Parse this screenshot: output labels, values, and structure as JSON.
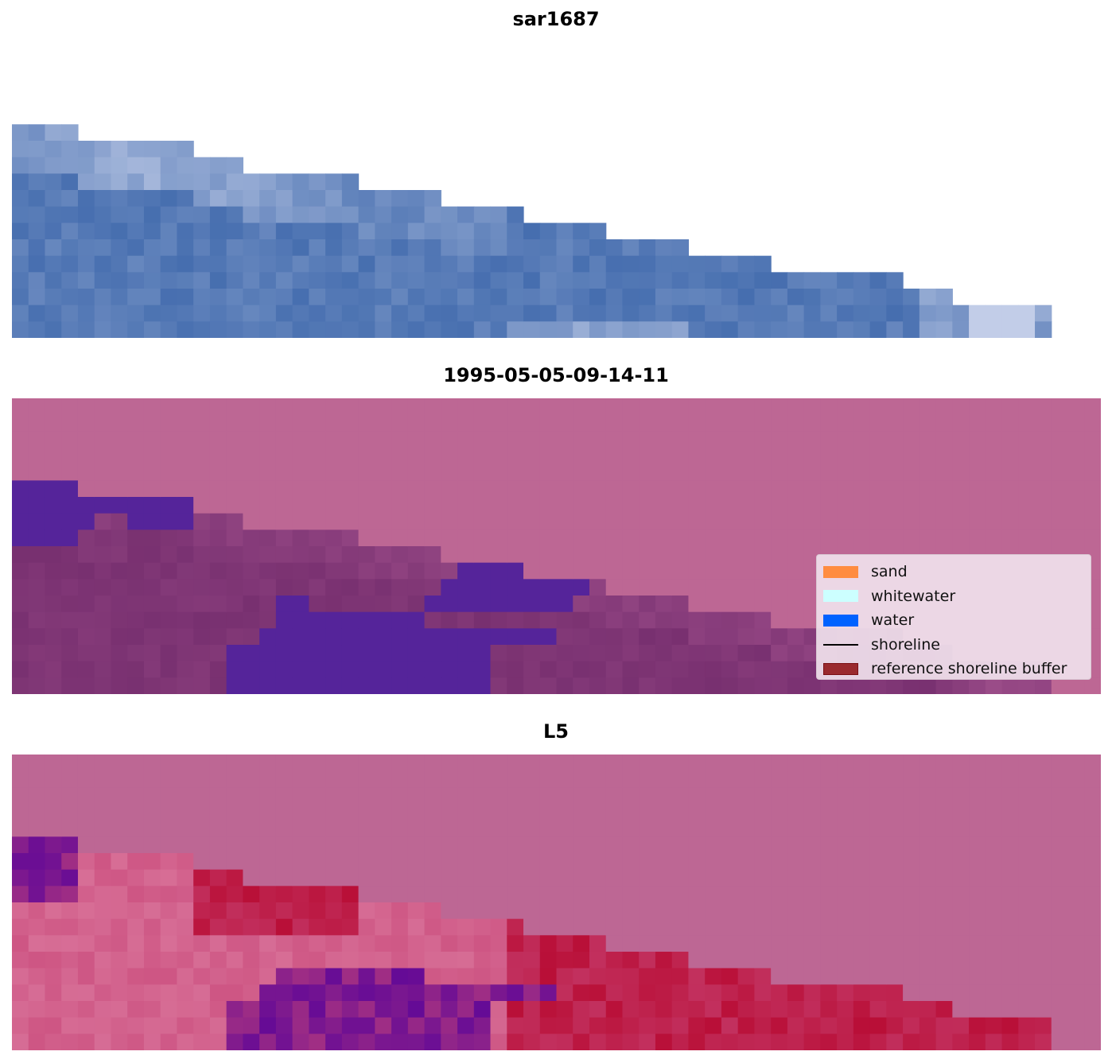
{
  "titles": [
    "sar1687",
    "1995-05-05-09-14-11",
    "L5"
  ],
  "legend": {
    "items": [
      {
        "label": "sand",
        "color": "#ff8c40",
        "kind": "patch"
      },
      {
        "label": "whitewater",
        "color": "#ccffff",
        "kind": "patch"
      },
      {
        "label": "water",
        "color": "#0062ff",
        "kind": "patch"
      },
      {
        "label": "shoreline",
        "color": "#000000",
        "kind": "line"
      },
      {
        "label": "reference shoreline buffer",
        "color": "#9a2a2e",
        "kind": "patch"
      }
    ]
  },
  "colors": {
    "nodata": "#bd6794",
    "land_purple": "#7a3272",
    "water_violet": "#55249a",
    "red": "#b8103c"
  }
}
